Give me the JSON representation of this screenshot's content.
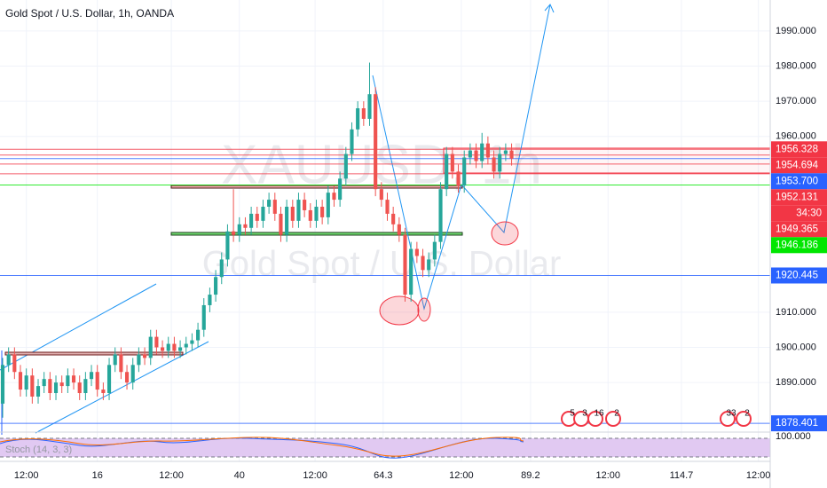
{
  "chart_data": {
    "type": "candlestick",
    "title": "Gold Spot / U.S. Dollar, 1h, OANDA",
    "watermark": [
      "XAUUSD, 1h",
      "Gold Spot / U.S. Dollar"
    ],
    "up_color": "#26a69a",
    "down_color": "#ef5350",
    "open": [
      1884,
      1895,
      1898,
      1893,
      1888,
      1892,
      1886,
      1889,
      1891,
      1887,
      1890,
      1889,
      1892,
      1890,
      1887,
      1891,
      1893,
      1888,
      1887,
      1895,
      1898,
      1893,
      1890,
      1895,
      1898,
      1897,
      1903,
      1900,
      1899,
      1901,
      1899,
      1900,
      1901,
      1902,
      1905,
      1912,
      1915,
      1920,
      1925,
      1933,
      1932,
      1935,
      1934,
      1938,
      1936,
      1940,
      1942,
      1938,
      1932,
      1940,
      1936,
      1942,
      1939,
      1936,
      1940,
      1937,
      1944,
      1942,
      1948,
      1955,
      1962,
      1968,
      1965,
      1972,
      1945,
      1942,
      1938,
      1935,
      1932,
      1915,
      1928,
      1926,
      1922,
      1925,
      1930,
      1945,
      1955,
      1950,
      1946,
      1954,
      1956,
      1953,
      1958,
      1954,
      1950,
      1955,
      1956
    ],
    "high": [
      1897,
      1900,
      1900,
      1895,
      1894,
      1894,
      1891,
      1893,
      1893,
      1892,
      1892,
      1894,
      1894,
      1892,
      1893,
      1895,
      1895,
      1890,
      1897,
      1900,
      1900,
      1895,
      1897,
      1900,
      1900,
      1905,
      1905,
      1902,
      1903,
      1903,
      1902,
      1903,
      1904,
      1907,
      1914,
      1917,
      1922,
      1927,
      1935,
      1945,
      1937,
      1937,
      1940,
      1940,
      1942,
      1944,
      1944,
      1940,
      1942,
      1942,
      1944,
      1944,
      1941,
      1942,
      1942,
      1946,
      1946,
      1950,
      1957,
      1964,
      1970,
      1970,
      1981,
      1974,
      1947,
      1944,
      1940,
      1937,
      1934,
      1930,
      1930,
      1928,
      1927,
      1932,
      1947,
      1957,
      1957,
      1952,
      1956,
      1958,
      1958,
      1961,
      1960,
      1956,
      1957,
      1958,
      1958
    ],
    "low": [
      1880,
      1893,
      1891,
      1886,
      1886,
      1884,
      1884,
      1887,
      1885,
      1885,
      1887,
      1887,
      1888,
      1885,
      1885,
      1889,
      1886,
      1885,
      1885,
      1893,
      1891,
      1888,
      1888,
      1893,
      1895,
      1895,
      1898,
      1897,
      1897,
      1897,
      1897,
      1898,
      1899,
      1900,
      1903,
      1910,
      1913,
      1918,
      1923,
      1930,
      1930,
      1932,
      1932,
      1934,
      1934,
      1938,
      1936,
      1930,
      1930,
      1934,
      1934,
      1937,
      1934,
      1934,
      1935,
      1935,
      1940,
      1940,
      1946,
      1953,
      1960,
      1963,
      1963,
      1943,
      1940,
      1936,
      1933,
      1930,
      1913,
      1913,
      1924,
      1920,
      1920,
      1923,
      1928,
      1943,
      1948,
      1944,
      1944,
      1952,
      1951,
      1951,
      1952,
      1948,
      1948,
      1953,
      1951.7
    ],
    "close": [
      1895,
      1898,
      1893,
      1888,
      1892,
      1886,
      1889,
      1891,
      1887,
      1890,
      1889,
      1892,
      1890,
      1887,
      1891,
      1893,
      1888,
      1887,
      1895,
      1898,
      1893,
      1890,
      1895,
      1898,
      1897,
      1903,
      1900,
      1899,
      1901,
      1899,
      1900,
      1901,
      1902,
      1905,
      1912,
      1915,
      1920,
      1925,
      1933,
      1932,
      1935,
      1934,
      1938,
      1936,
      1940,
      1942,
      1938,
      1932,
      1940,
      1936,
      1942,
      1939,
      1936,
      1940,
      1937,
      1944,
      1942,
      1948,
      1955,
      1962,
      1968,
      1965,
      1972,
      1945,
      1942,
      1938,
      1935,
      1932,
      1915,
      1928,
      1926,
      1922,
      1925,
      1930,
      1945,
      1955,
      1950,
      1946,
      1954,
      1956,
      1953,
      1958,
      1954,
      1950,
      1955,
      1956,
      1953.7
    ],
    "xlim": [
      -0.45,
      129.7
    ],
    "xticks": [
      {
        "value": 4,
        "label": "12:00"
      },
      16,
      {
        "value": 28.5,
        "label": "12:00"
      },
      40,
      {
        "value": 52.8,
        "label": "12:00"
      },
      64.3,
      {
        "value": 77.5,
        "label": "12:00"
      },
      89.2,
      {
        "value": 102.3,
        "label": "12:00"
      },
      114.7,
      {
        "value": 127.7,
        "label": "12:00"
      }
    ],
    "ylim": [
      1875.9,
      1998.8
    ],
    "yticks": [
      {
        "value": 1890,
        "label": "1890.000"
      },
      {
        "value": 1900,
        "label": "1900.000"
      },
      {
        "value": 1910,
        "label": "1910.000"
      },
      {
        "value": 1960,
        "label": "1960.000"
      },
      {
        "value": 1970,
        "label": "1970.000"
      },
      {
        "value": 1980,
        "label": "1980.000"
      },
      {
        "value": 1990,
        "label": "1990.000"
      }
    ],
    "price_labels": [
      {
        "value": 1956.328,
        "color": "#f23645"
      },
      {
        "value": 1954.694,
        "color": "#f23645"
      },
      {
        "value": 1953.7,
        "label": "1953.700",
        "color": "#2962ff"
      },
      {
        "value": 1952.131,
        "color": "#f23645"
      },
      {
        "value": 1949.365,
        "color": "#f23645"
      },
      {
        "value": 1946.186,
        "color": "#00e600"
      },
      {
        "value": 1920.445,
        "color": "#2962ff"
      },
      {
        "value": 1878.401,
        "color": "#2962ff"
      }
    ],
    "countdown": "34:30",
    "events": [
      "5",
      "3",
      "16",
      "2",
      "33",
      "2"
    ],
    "indicator": {
      "name": "Stoch (14, 3, 3)",
      "tick": "100.000"
    }
  }
}
